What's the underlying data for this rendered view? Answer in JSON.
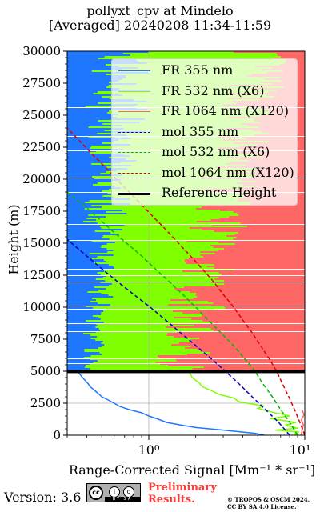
{
  "title_line1": "pollyxt_cpv at Mindelo",
  "title_line2": "[Averaged] 20240208 11:34-11:59",
  "footer": {
    "version_label": "Version: 3.6",
    "license_badge_icon": "cc-by-sa-icon",
    "badge_strip": "BY SA",
    "cc_glyph": "cc",
    "by_glyph": "i",
    "sa_glyph": "o",
    "preliminary_line1": "Preliminary",
    "preliminary_line2": "Results.",
    "copyright_line1": "© TROPOS & OSCM 2024.",
    "copyright_line2": "CC BY SA 4.0 License."
  },
  "chart_data": {
    "type": "line",
    "xlabel": "Range-Corrected Signal [Mm⁻¹ * sr⁻¹]",
    "ylabel": "Height (m)",
    "xscale": "log",
    "xlim": [
      0.3,
      10
    ],
    "ylim": [
      0,
      30000
    ],
    "xticks": [
      1,
      10
    ],
    "xtick_labels": [
      "10⁰",
      "10¹"
    ],
    "yticks": [
      0,
      2500,
      5000,
      7500,
      10000,
      12500,
      15000,
      17500,
      20000,
      22500,
      25000,
      27500,
      30000
    ],
    "grid": true,
    "legend_position": "top-right",
    "reference_height": [
      4900,
      5100
    ],
    "series": [
      {
        "name": "FR 355 nm",
        "color": "#1f77ff",
        "style": "solid",
        "points": [
          [
            5.5,
            0
          ],
          [
            4.8,
            150
          ],
          [
            3,
            400
          ],
          [
            2,
            600
          ],
          [
            1.6,
            800
          ],
          [
            1.3,
            1000
          ],
          [
            1.15,
            1250
          ],
          [
            1,
            1500
          ],
          [
            0.9,
            1750
          ],
          [
            0.75,
            2000
          ],
          [
            0.65,
            2250
          ],
          [
            0.6,
            2500
          ],
          [
            0.55,
            2750
          ],
          [
            0.5,
            3000
          ],
          [
            0.48,
            3200
          ],
          [
            0.45,
            3500
          ],
          [
            0.42,
            3800
          ],
          [
            0.41,
            4000
          ],
          [
            0.39,
            4300
          ],
          [
            0.37,
            4600
          ],
          [
            0.35,
            5000
          ]
        ]
      },
      {
        "name": "FR 532 nm (X6)",
        "color": "#80ff00",
        "style": "solid",
        "points": [
          [
            9,
            0
          ],
          [
            8.6,
            100
          ],
          [
            9.2,
            250
          ],
          [
            6.5,
            400
          ],
          [
            9,
            550
          ],
          [
            7.5,
            800
          ],
          [
            8.8,
            1000
          ],
          [
            6,
            1300
          ],
          [
            8,
            1500
          ],
          [
            6.2,
            1800
          ],
          [
            5,
            2100
          ],
          [
            5.4,
            2300
          ],
          [
            3.8,
            2600
          ],
          [
            3.5,
            2900
          ],
          [
            2.8,
            3200
          ],
          [
            2.5,
            3500
          ],
          [
            2.2,
            3800
          ],
          [
            2.1,
            4100
          ],
          [
            1.9,
            4500
          ],
          [
            1.8,
            5000
          ]
        ]
      },
      {
        "name": "FR 1064 nm (X120)",
        "color": "#ff6666",
        "style": "solid",
        "points": [
          [
            9.5,
            0
          ],
          [
            9.6,
            400
          ],
          [
            9.8,
            800
          ],
          [
            9.5,
            1200
          ],
          [
            9.9,
            1600
          ],
          [
            9.6,
            2000
          ]
        ]
      },
      {
        "name": "mol 355 nm",
        "color": "#0000cc",
        "style": "dashed",
        "points": [
          [
            8,
            0
          ],
          [
            6.8,
            1000
          ],
          [
            5.6,
            2000
          ],
          [
            4.6,
            3000
          ],
          [
            3.8,
            4000
          ],
          [
            3.1,
            5000
          ],
          [
            2.5,
            6000
          ],
          [
            2,
            7000
          ],
          [
            1.6,
            8000
          ],
          [
            1.28,
            9000
          ],
          [
            1.02,
            10000
          ],
          [
            0.8,
            11000
          ],
          [
            0.63,
            12000
          ],
          [
            0.5,
            13000
          ],
          [
            0.4,
            14000
          ],
          [
            0.32,
            15000
          ],
          [
            0.3,
            15300
          ]
        ]
      },
      {
        "name": "mol 532 nm (X6)",
        "color": "#00bb00",
        "style": "dashed",
        "points": [
          [
            9,
            0
          ],
          [
            8,
            1000
          ],
          [
            7,
            2000
          ],
          [
            6.2,
            3000
          ],
          [
            5.4,
            4000
          ],
          [
            4.8,
            5000
          ],
          [
            4.1,
            6000
          ],
          [
            3.5,
            7000
          ],
          [
            2.9,
            8000
          ],
          [
            2.4,
            9000
          ],
          [
            2,
            10000
          ],
          [
            1.65,
            11000
          ],
          [
            1.35,
            12000
          ],
          [
            1.1,
            13000
          ],
          [
            0.9,
            14000
          ],
          [
            0.72,
            15000
          ],
          [
            0.58,
            16000
          ],
          [
            0.47,
            17000
          ],
          [
            0.38,
            18000
          ],
          [
            0.3,
            19000
          ]
        ]
      },
      {
        "name": "mol 1064 nm (X120)",
        "color": "#dd0000",
        "style": "dashed",
        "points": [
          [
            10,
            0
          ],
          [
            9.3,
            1000
          ],
          [
            8.6,
            2000
          ],
          [
            7.9,
            3000
          ],
          [
            7.2,
            4000
          ],
          [
            6.6,
            5000
          ],
          [
            5.9,
            6000
          ],
          [
            5.2,
            7000
          ],
          [
            4.6,
            8000
          ],
          [
            4,
            9000
          ],
          [
            3.5,
            10000
          ],
          [
            3,
            11000
          ],
          [
            2.6,
            12000
          ],
          [
            2.2,
            13000
          ],
          [
            1.85,
            14000
          ],
          [
            1.55,
            15000
          ],
          [
            1.3,
            16000
          ],
          [
            1.08,
            17000
          ],
          [
            0.9,
            18000
          ],
          [
            0.75,
            19000
          ],
          [
            0.62,
            20000
          ],
          [
            0.52,
            21000
          ],
          [
            0.43,
            22000
          ],
          [
            0.36,
            23000
          ],
          [
            0.3,
            24000
          ]
        ]
      },
      {
        "name": "Reference Height",
        "color": "#000000",
        "style": "solid"
      }
    ]
  }
}
